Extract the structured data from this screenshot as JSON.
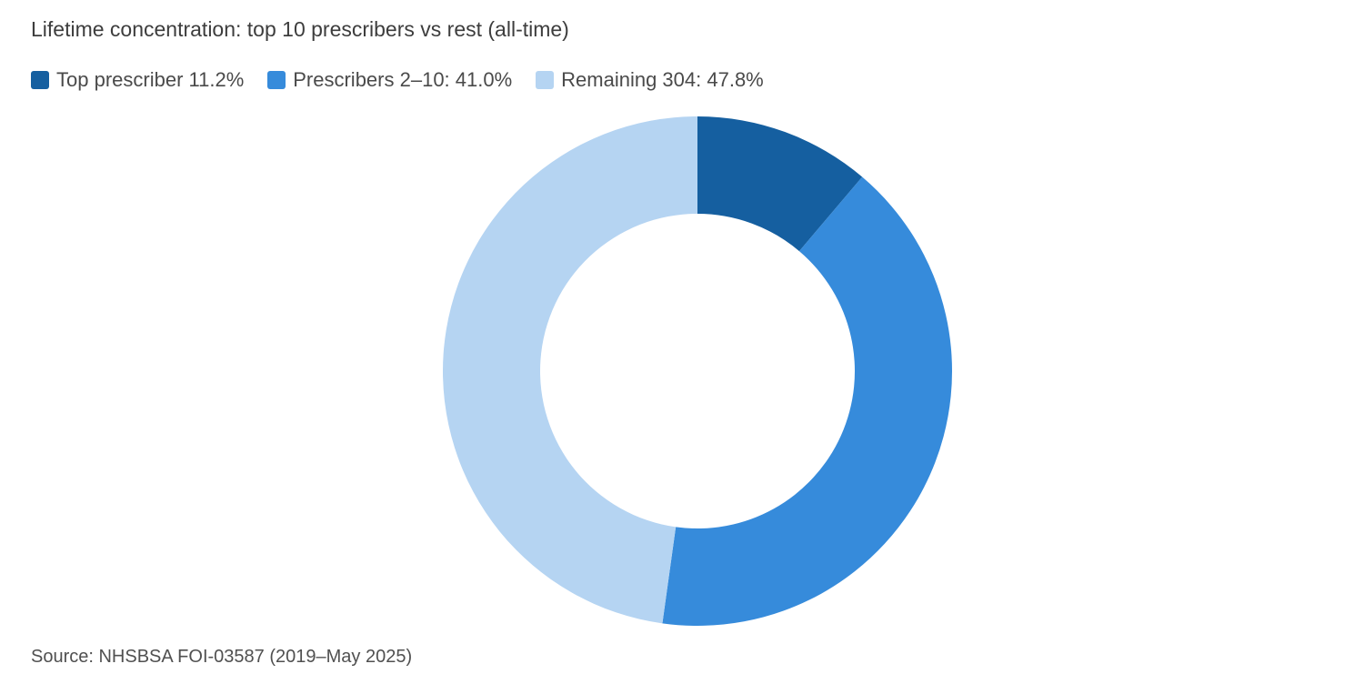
{
  "chart_data": {
    "type": "pie",
    "variant": "donut",
    "title": "Lifetime concentration: top 10 prescribers vs rest (all-time)",
    "legend_position": "top-left",
    "slices": [
      {
        "label": "Top prescriber",
        "legend_text": "Top prescriber 11.2%",
        "value": 11.2,
        "color": "#155fa0"
      },
      {
        "label": "Prescribers 2–10",
        "legend_text": "Prescribers 2–10: 41.0%",
        "value": 41.0,
        "color": "#368bdb"
      },
      {
        "label": "Remaining 304",
        "legend_text": "Remaining 304: 47.8%",
        "value": 47.8,
        "color": "#b5d4f2"
      }
    ]
  },
  "source_note": "Source: NHSBSA FOI-03587 (2019–May 2025)"
}
